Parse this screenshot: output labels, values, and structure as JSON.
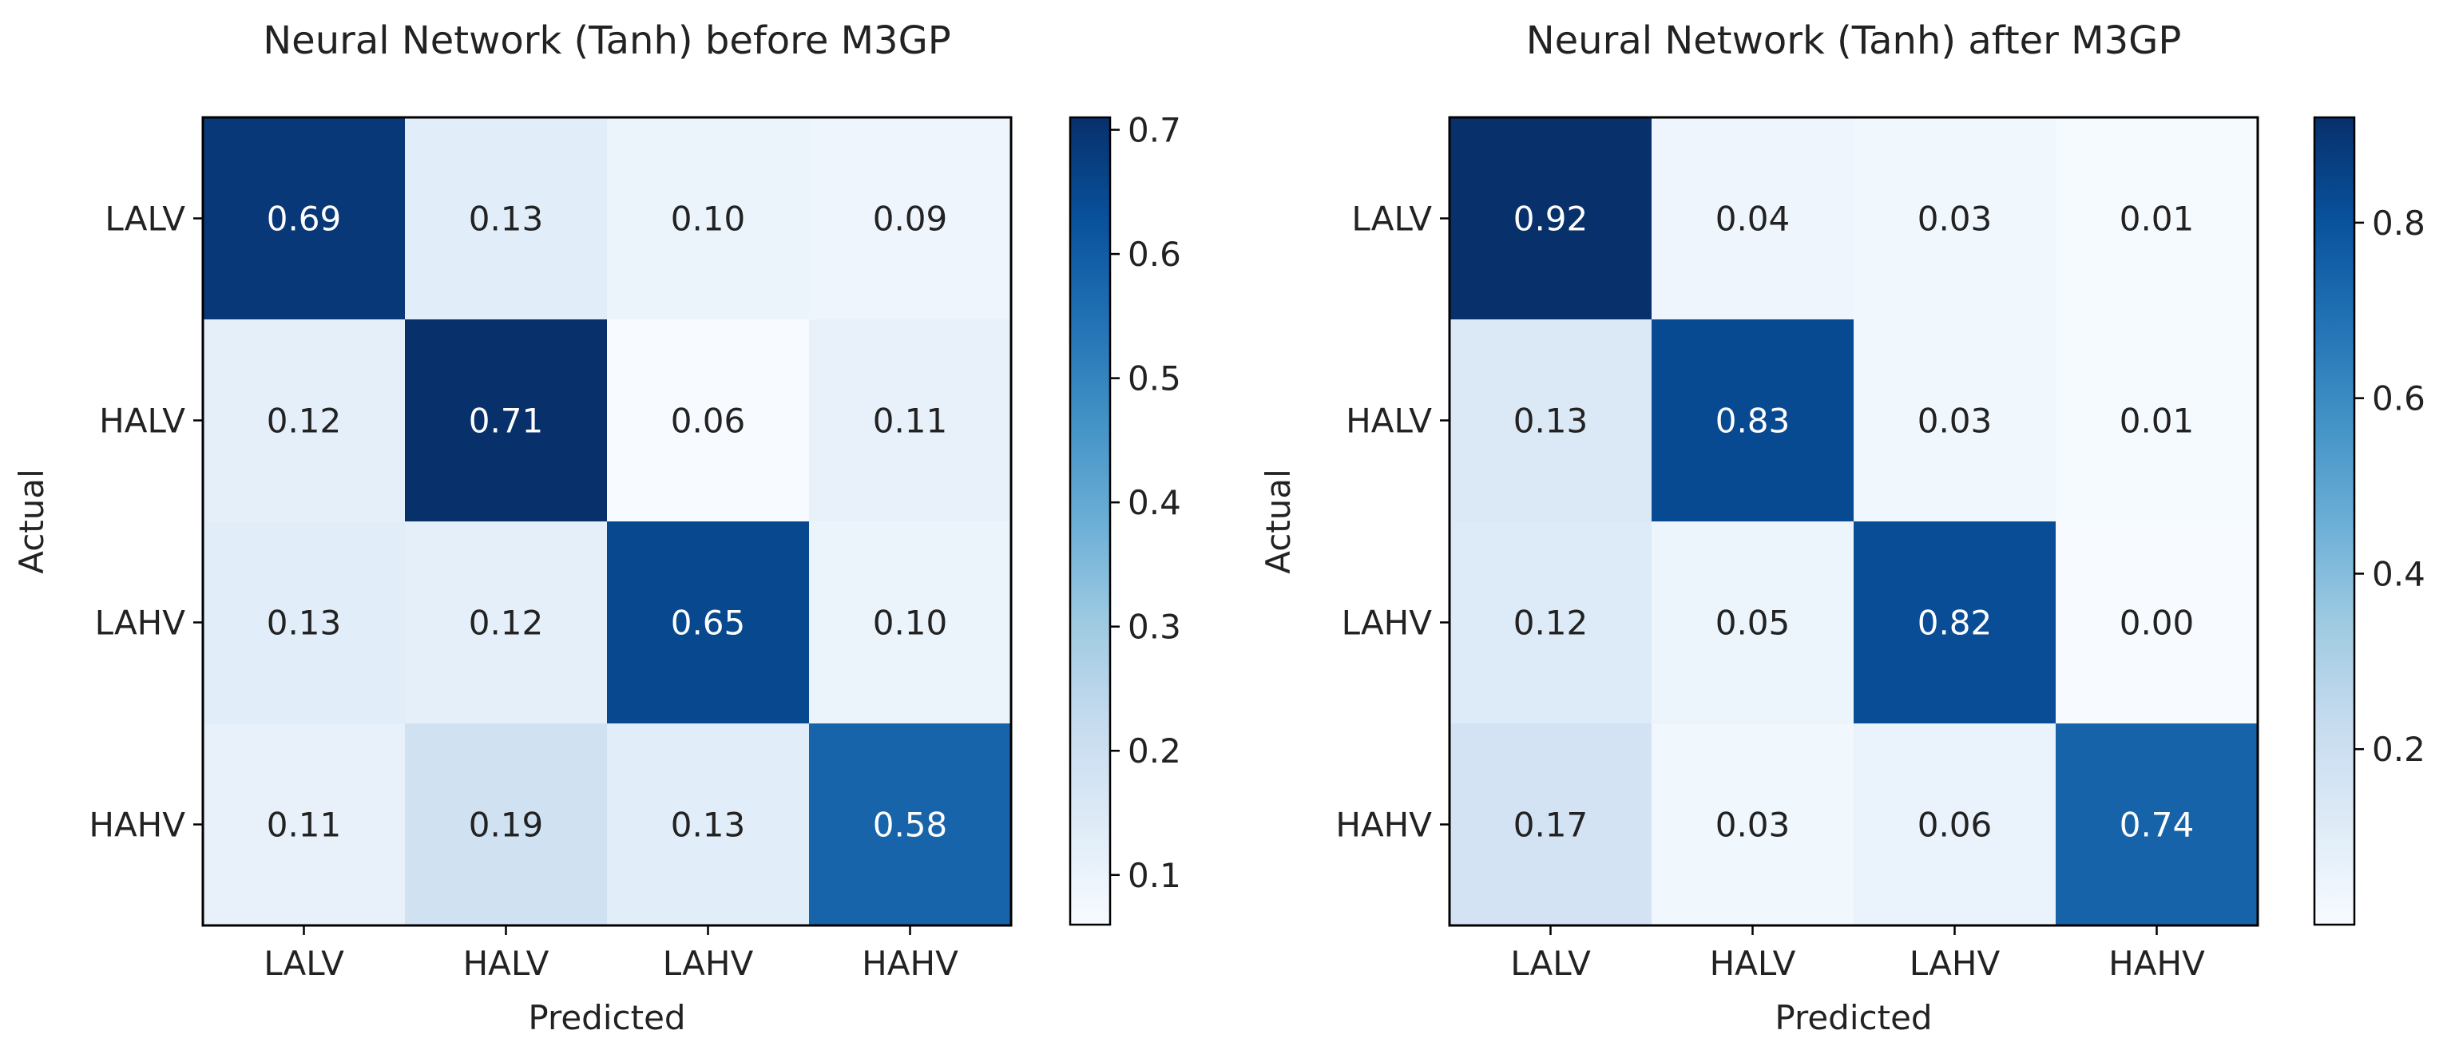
{
  "chart_data": [
    {
      "type": "heatmap",
      "title": "Neural Network (Tanh) before M3GP",
      "xlabel": "Predicted",
      "ylabel": "Actual",
      "x_categories": [
        "LALV",
        "HALV",
        "LAHV",
        "HAHV"
      ],
      "y_categories": [
        "LALV",
        "HALV",
        "LAHV",
        "HAHV"
      ],
      "values": [
        [
          0.69,
          0.13,
          0.1,
          0.09
        ],
        [
          0.12,
          0.71,
          0.06,
          0.11
        ],
        [
          0.13,
          0.12,
          0.65,
          0.1
        ],
        [
          0.11,
          0.19,
          0.13,
          0.58
        ]
      ],
      "value_labels": [
        [
          "0.69",
          "0.13",
          "0.10",
          "0.09"
        ],
        [
          "0.12",
          "0.71",
          "0.06",
          "0.11"
        ],
        [
          "0.13",
          "0.12",
          "0.65",
          "0.10"
        ],
        [
          "0.11",
          "0.19",
          "0.13",
          "0.58"
        ]
      ],
      "colormap": "Blues",
      "vmin": 0.06,
      "vmax": 0.71,
      "colorbar_ticks": [
        0.1,
        0.2,
        0.3,
        0.4,
        0.5,
        0.6,
        0.7
      ],
      "colorbar_tick_labels": [
        "0.1",
        "0.2",
        "0.3",
        "0.4",
        "0.5",
        "0.6",
        "0.7"
      ]
    },
    {
      "type": "heatmap",
      "title": "Neural Network (Tanh) after M3GP",
      "xlabel": "Predicted",
      "ylabel": "Actual",
      "x_categories": [
        "LALV",
        "HALV",
        "LAHV",
        "HAHV"
      ],
      "y_categories": [
        "LALV",
        "HALV",
        "LAHV",
        "HAHV"
      ],
      "values": [
        [
          0.92,
          0.04,
          0.03,
          0.01
        ],
        [
          0.13,
          0.83,
          0.03,
          0.01
        ],
        [
          0.12,
          0.05,
          0.82,
          0.0
        ],
        [
          0.17,
          0.03,
          0.06,
          0.74
        ]
      ],
      "value_labels": [
        [
          "0.92",
          "0.04",
          "0.03",
          "0.01"
        ],
        [
          "0.13",
          "0.83",
          "0.03",
          "0.01"
        ],
        [
          "0.12",
          "0.05",
          "0.82",
          "0.00"
        ],
        [
          "0.17",
          "0.03",
          "0.06",
          "0.74"
        ]
      ],
      "colormap": "Blues",
      "vmin": 0.0,
      "vmax": 0.92,
      "colorbar_ticks": [
        0.2,
        0.4,
        0.6,
        0.8
      ],
      "colorbar_tick_labels": [
        "0.2",
        "0.4",
        "0.6",
        "0.8"
      ]
    }
  ]
}
